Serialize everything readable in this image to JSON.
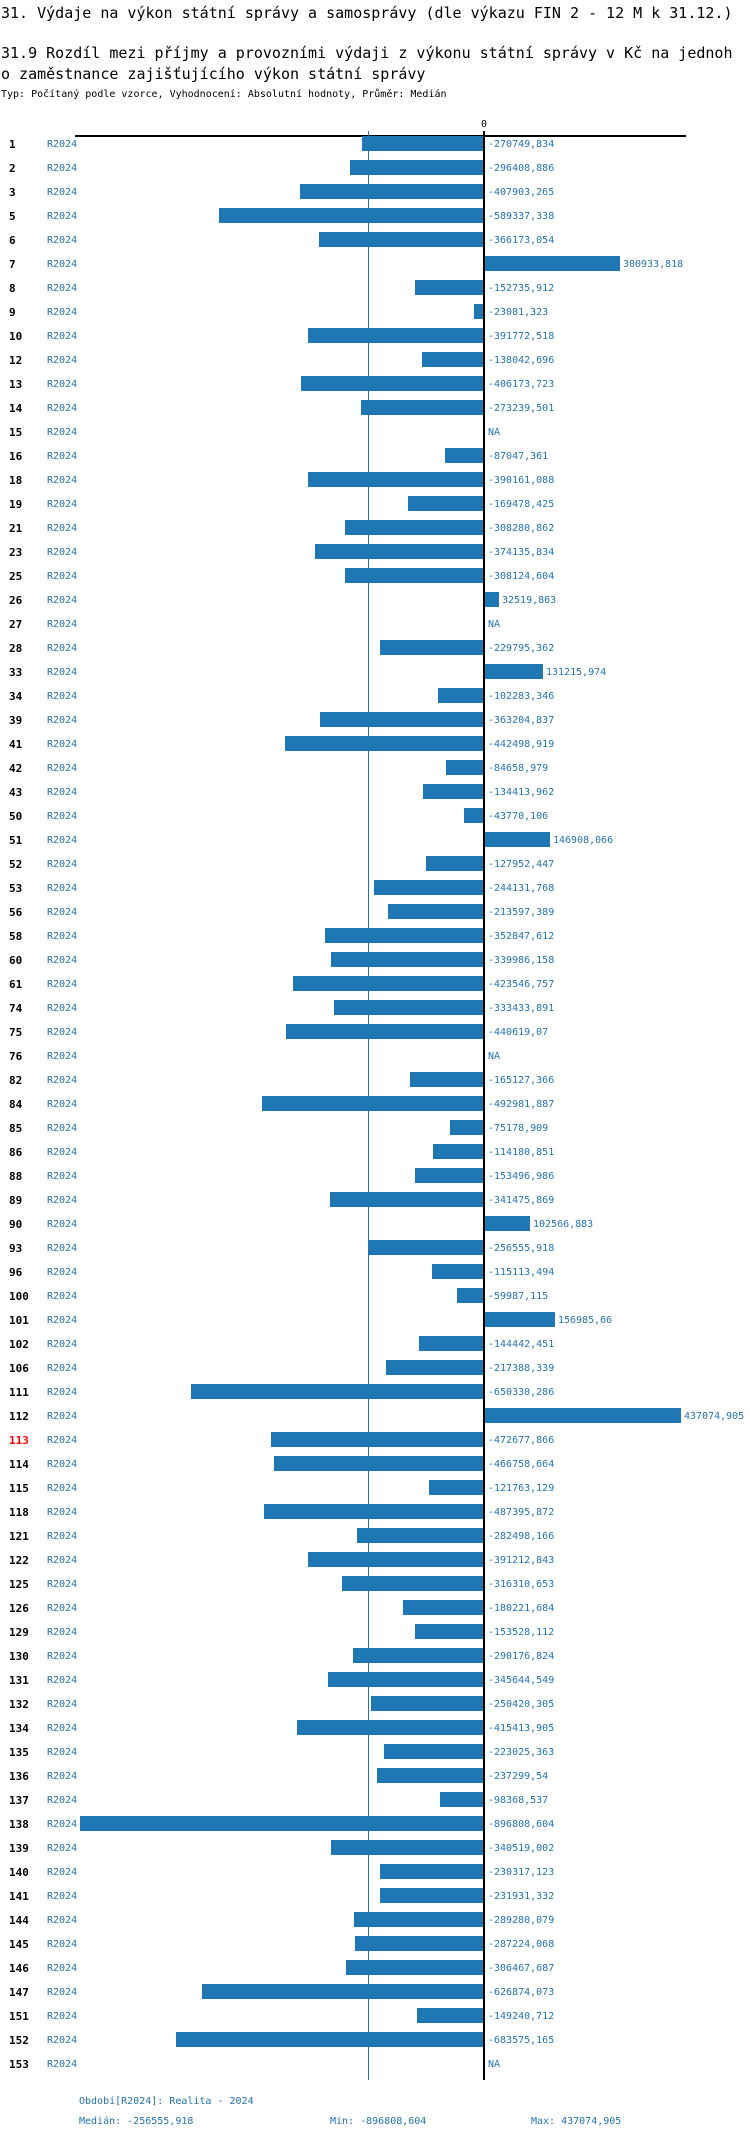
{
  "colors": {
    "bar": "#1f77b4",
    "text_blue": "#2473b2",
    "highlight": "#ff0000",
    "median_line": "#2473b2"
  },
  "footer": {
    "period_note": "Období[R2024]: Realita - 2024",
    "median_text": "Medián: -256555,918",
    "min_text": "Min: -896808,604",
    "max_text": "Max: 437074,905"
  },
  "chart_data": {
    "type": "bar",
    "orientation": "horizontal",
    "title": "31. Výdaje na výkon státní správy a samosprávy (dle výkazu FIN 2 - 12 M k 31.12.)",
    "subtitle_line1": "31.9 Rozdíl mezi příjmy a provozními výdaji z výkonu státní správy v Kč na jednoh",
    "subtitle_line2": "o zaměstnance zajišťujícího výkon státní správy",
    "typ": "Typ: Počítaný podle vzorce, Vyhodnocení: Absolutní hodnoty, Průměr: Medián",
    "zero_tick_label": "0",
    "xlim": [
      -896808.604,
      437074.905
    ],
    "median": -256555.918,
    "min": -896808.604,
    "max": 437074.905,
    "highlight_id": "113",
    "rows": [
      {
        "id": "1",
        "period": "R2024",
        "value": -270749.834,
        "label": "-270749,834"
      },
      {
        "id": "2",
        "period": "R2024",
        "value": -296408.886,
        "label": "-296408,886"
      },
      {
        "id": "3",
        "period": "R2024",
        "value": -407903.265,
        "label": "-407903,265"
      },
      {
        "id": "5",
        "period": "R2024",
        "value": -589337.338,
        "label": "-589337,338"
      },
      {
        "id": "6",
        "period": "R2024",
        "value": -366173.054,
        "label": "-366173,054"
      },
      {
        "id": "7",
        "period": "R2024",
        "value": 300933.818,
        "label": "300933,818"
      },
      {
        "id": "8",
        "period": "R2024",
        "value": -152735.912,
        "label": "-152735,912"
      },
      {
        "id": "9",
        "period": "R2024",
        "value": -23081.323,
        "label": "-23081,323"
      },
      {
        "id": "10",
        "period": "R2024",
        "value": -391772.518,
        "label": "-391772,518"
      },
      {
        "id": "12",
        "period": "R2024",
        "value": -138042.696,
        "label": "-138042,696"
      },
      {
        "id": "13",
        "period": "R2024",
        "value": -406173.723,
        "label": "-406173,723"
      },
      {
        "id": "14",
        "period": "R2024",
        "value": -273239.501,
        "label": "-273239,501"
      },
      {
        "id": "15",
        "period": "R2024",
        "value": null,
        "label": "NA"
      },
      {
        "id": "16",
        "period": "R2024",
        "value": -87047.361,
        "label": "-87047,361"
      },
      {
        "id": "18",
        "period": "R2024",
        "value": -390161.088,
        "label": "-390161,088"
      },
      {
        "id": "19",
        "period": "R2024",
        "value": -169478.425,
        "label": "-169478,425"
      },
      {
        "id": "21",
        "period": "R2024",
        "value": -308280.862,
        "label": "-308280,862"
      },
      {
        "id": "23",
        "period": "R2024",
        "value": -374135.834,
        "label": "-374135,834"
      },
      {
        "id": "25",
        "period": "R2024",
        "value": -308124.604,
        "label": "-308124,604"
      },
      {
        "id": "26",
        "period": "R2024",
        "value": 32519.863,
        "label": "32519,863"
      },
      {
        "id": "27",
        "period": "R2024",
        "value": null,
        "label": "NA"
      },
      {
        "id": "28",
        "period": "R2024",
        "value": -229795.362,
        "label": "-229795,362"
      },
      {
        "id": "33",
        "period": "R2024",
        "value": 131215.974,
        "label": "131215,974"
      },
      {
        "id": "34",
        "period": "R2024",
        "value": -102283.346,
        "label": "-102283,346"
      },
      {
        "id": "39",
        "period": "R2024",
        "value": -363204.837,
        "label": "-363204,837"
      },
      {
        "id": "41",
        "period": "R2024",
        "value": -442498.919,
        "label": "-442498,919"
      },
      {
        "id": "42",
        "period": "R2024",
        "value": -84658.979,
        "label": "-84658,979"
      },
      {
        "id": "43",
        "period": "R2024",
        "value": -134413.962,
        "label": "-134413,962"
      },
      {
        "id": "50",
        "period": "R2024",
        "value": -43770.106,
        "label": "-43770,106"
      },
      {
        "id": "51",
        "period": "R2024",
        "value": 146908.066,
        "label": "146908,066"
      },
      {
        "id": "52",
        "period": "R2024",
        "value": -127952.447,
        "label": "-127952,447"
      },
      {
        "id": "53",
        "period": "R2024",
        "value": -244131.768,
        "label": "-244131,768"
      },
      {
        "id": "56",
        "period": "R2024",
        "value": -213597.389,
        "label": "-213597,389"
      },
      {
        "id": "58",
        "period": "R2024",
        "value": -352847.612,
        "label": "-352847,612"
      },
      {
        "id": "60",
        "period": "R2024",
        "value": -339986.158,
        "label": "-339986,158"
      },
      {
        "id": "61",
        "period": "R2024",
        "value": -423546.757,
        "label": "-423546,757"
      },
      {
        "id": "74",
        "period": "R2024",
        "value": -333433.891,
        "label": "-333433,891"
      },
      {
        "id": "75",
        "period": "R2024",
        "value": -440619.07,
        "label": "-440619,07"
      },
      {
        "id": "76",
        "period": "R2024",
        "value": null,
        "label": "NA"
      },
      {
        "id": "82",
        "period": "R2024",
        "value": -165127.366,
        "label": "-165127,366"
      },
      {
        "id": "84",
        "period": "R2024",
        "value": -492981.887,
        "label": "-492981,887"
      },
      {
        "id": "85",
        "period": "R2024",
        "value": -75178.909,
        "label": "-75178,909"
      },
      {
        "id": "86",
        "period": "R2024",
        "value": -114180.851,
        "label": "-114180,851"
      },
      {
        "id": "88",
        "period": "R2024",
        "value": -153496.986,
        "label": "-153496,986"
      },
      {
        "id": "89",
        "period": "R2024",
        "value": -341475.869,
        "label": "-341475,869"
      },
      {
        "id": "90",
        "period": "R2024",
        "value": 102566.883,
        "label": "102566,883"
      },
      {
        "id": "93",
        "period": "R2024",
        "value": -256555.918,
        "label": "-256555,918"
      },
      {
        "id": "96",
        "period": "R2024",
        "value": -115113.494,
        "label": "-115113,494"
      },
      {
        "id": "100",
        "period": "R2024",
        "value": -59987.115,
        "label": "-59987,115"
      },
      {
        "id": "101",
        "period": "R2024",
        "value": 156985.66,
        "label": "156985,66"
      },
      {
        "id": "102",
        "period": "R2024",
        "value": -144442.451,
        "label": "-144442,451"
      },
      {
        "id": "106",
        "period": "R2024",
        "value": -217388.339,
        "label": "-217388,339"
      },
      {
        "id": "111",
        "period": "R2024",
        "value": -650330.286,
        "label": "-650330,286"
      },
      {
        "id": "112",
        "period": "R2024",
        "value": 437074.905,
        "label": "437074,905"
      },
      {
        "id": "113",
        "period": "R2024",
        "value": -472677.866,
        "label": "-472677,866"
      },
      {
        "id": "114",
        "period": "R2024",
        "value": -466758.664,
        "label": "-466758,664"
      },
      {
        "id": "115",
        "period": "R2024",
        "value": -121763.129,
        "label": "-121763,129"
      },
      {
        "id": "118",
        "period": "R2024",
        "value": -487395.872,
        "label": "-487395,872"
      },
      {
        "id": "121",
        "period": "R2024",
        "value": -282498.166,
        "label": "-282498,166"
      },
      {
        "id": "122",
        "period": "R2024",
        "value": -391212.843,
        "label": "-391212,843"
      },
      {
        "id": "125",
        "period": "R2024",
        "value": -316310.653,
        "label": "-316310,653"
      },
      {
        "id": "126",
        "period": "R2024",
        "value": -180221.684,
        "label": "-180221,684"
      },
      {
        "id": "129",
        "period": "R2024",
        "value": -153528.112,
        "label": "-153528,112"
      },
      {
        "id": "130",
        "period": "R2024",
        "value": -290176.824,
        "label": "-290176,824"
      },
      {
        "id": "131",
        "period": "R2024",
        "value": -345644.549,
        "label": "-345644,549"
      },
      {
        "id": "132",
        "period": "R2024",
        "value": -250420.305,
        "label": "-250420,305"
      },
      {
        "id": "134",
        "period": "R2024",
        "value": -415413.905,
        "label": "-415413,905"
      },
      {
        "id": "135",
        "period": "R2024",
        "value": -223025.363,
        "label": "-223025,363"
      },
      {
        "id": "136",
        "period": "R2024",
        "value": -237299.54,
        "label": "-237299,54"
      },
      {
        "id": "137",
        "period": "R2024",
        "value": -98368.537,
        "label": "-98368,537"
      },
      {
        "id": "138",
        "period": "R2024",
        "value": -896808.604,
        "label": "-896808,604"
      },
      {
        "id": "139",
        "period": "R2024",
        "value": -340519.002,
        "label": "-340519,002"
      },
      {
        "id": "140",
        "period": "R2024",
        "value": -230317.123,
        "label": "-230317,123"
      },
      {
        "id": "141",
        "period": "R2024",
        "value": -231931.332,
        "label": "-231931,332"
      },
      {
        "id": "144",
        "period": "R2024",
        "value": -289280.079,
        "label": "-289280,079"
      },
      {
        "id": "145",
        "period": "R2024",
        "value": -287224.068,
        "label": "-287224,068"
      },
      {
        "id": "146",
        "period": "R2024",
        "value": -306467.687,
        "label": "-306467,687"
      },
      {
        "id": "147",
        "period": "R2024",
        "value": -626874.073,
        "label": "-626874,073"
      },
      {
        "id": "151",
        "period": "R2024",
        "value": -149240.712,
        "label": "-149240,712"
      },
      {
        "id": "152",
        "period": "R2024",
        "value": -683575.165,
        "label": "-683575,165"
      },
      {
        "id": "153",
        "period": "R2024",
        "value": null,
        "label": "NA"
      }
    ]
  }
}
